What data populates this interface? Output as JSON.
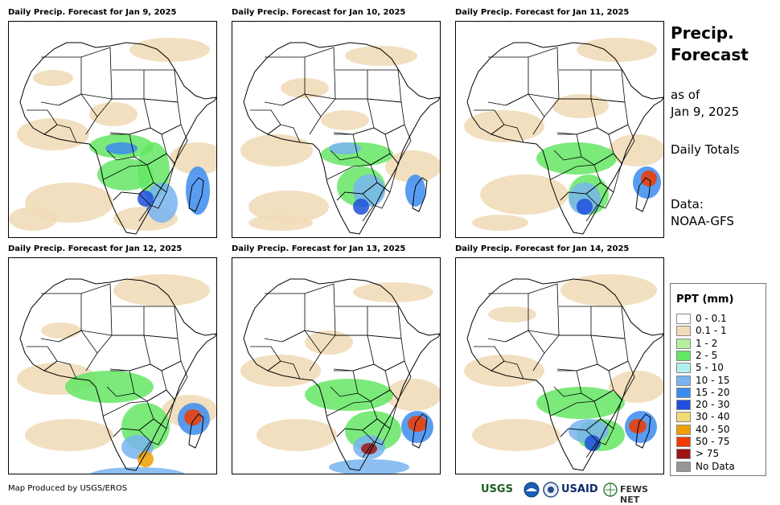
{
  "panels": [
    {
      "title": "Daily Precip. Forecast for Jan 9, 2025"
    },
    {
      "title": "Daily Precip. Forecast for Jan 10, 2025"
    },
    {
      "title": "Daily Precip. Forecast for Jan 11, 2025"
    },
    {
      "title": "Daily Precip. Forecast for Jan 12, 2025"
    },
    {
      "title": "Daily Precip. Forecast for Jan 13, 2025"
    },
    {
      "title": "Daily Precip. Forecast for Jan 14, 2025"
    }
  ],
  "sidebar": {
    "heading_line1": "Precip.",
    "heading_line2": "Forecast",
    "asof_line1": "as of",
    "asof_line2": "Jan 9, 2025",
    "totals": "Daily Totals",
    "data_label": "Data:",
    "data_source": "NOAA-GFS"
  },
  "legend": {
    "title": "PPT (mm)",
    "items": [
      {
        "label": "0 - 0.1",
        "color": "#ffffff"
      },
      {
        "label": "0.1 - 1",
        "color": "#f0dcb8"
      },
      {
        "label": "1 - 2",
        "color": "#b4f0a0"
      },
      {
        "label": "2 - 5",
        "color": "#64e664"
      },
      {
        "label": "5 - 10",
        "color": "#b4f0f0"
      },
      {
        "label": "10 - 15",
        "color": "#78b4f0"
      },
      {
        "label": "15 - 20",
        "color": "#3c8cf0"
      },
      {
        "label": "20 - 30",
        "color": "#1e50dc"
      },
      {
        "label": "30 - 40",
        "color": "#f0dc78"
      },
      {
        "label": "40 - 50",
        "color": "#f0a000"
      },
      {
        "label": "50 - 75",
        "color": "#f03c00"
      },
      {
        "label": "> 75",
        "color": "#a01414"
      },
      {
        "label": "No Data",
        "color": "#969696"
      }
    ]
  },
  "footer": {
    "credit": "Map Produced by USGS/EROS",
    "logos": {
      "usgs": "USGS",
      "usaid": "USAID",
      "fewsnet": "FEWS NET"
    }
  }
}
